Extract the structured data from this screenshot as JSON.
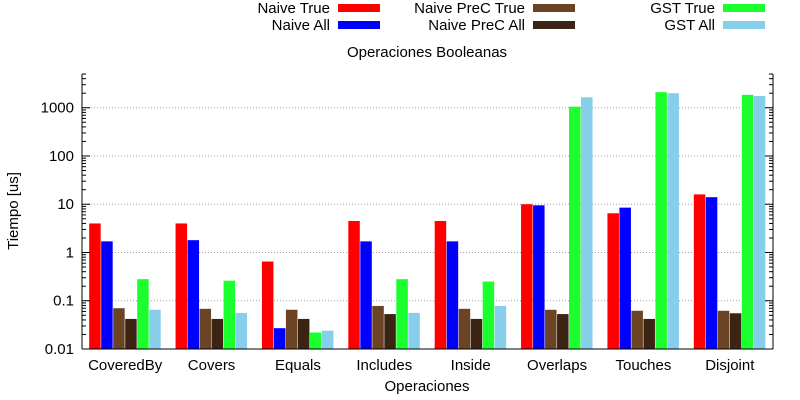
{
  "chart_data": {
    "type": "bar",
    "title": "Operaciones Booleanas",
    "xlabel": "Operaciones",
    "ylabel": "Tiempo [us]",
    "yscale": "log",
    "ylim": [
      0.01,
      5000
    ],
    "yticks": [
      {
        "value": 0.01,
        "label": "0.01"
      },
      {
        "value": 0.1,
        "label": "0.1"
      },
      {
        "value": 1,
        "label": "1"
      },
      {
        "value": 10,
        "label": "10"
      },
      {
        "value": 100,
        "label": "100"
      },
      {
        "value": 1000,
        "label": "1000"
      }
    ],
    "grid": true,
    "legend_position": "top",
    "categories": [
      "CoveredBy",
      "Covers",
      "Equals",
      "Includes",
      "Inside",
      "Overlaps",
      "Touches",
      "Disjoint"
    ],
    "series": [
      {
        "name": "Naive True",
        "color": "#ff0000",
        "values": [
          4.0,
          4.0,
          0.65,
          4.5,
          4.5,
          10.0,
          6.5,
          16.0
        ]
      },
      {
        "name": "Naive All",
        "color": "#0000ff",
        "values": [
          1.7,
          1.8,
          0.027,
          1.7,
          1.7,
          9.5,
          8.5,
          14.0
        ]
      },
      {
        "name": "Naive PreC True",
        "color": "#6b4425",
        "values": [
          0.07,
          0.068,
          0.065,
          0.078,
          0.068,
          0.065,
          0.062,
          0.062
        ]
      },
      {
        "name": "Naive PreC All",
        "color": "#3b2413",
        "values": [
          0.042,
          0.042,
          0.042,
          0.053,
          0.042,
          0.053,
          0.042,
          0.055
        ]
      },
      {
        "name": "GST True",
        "color": "#1cff2e",
        "values": [
          0.28,
          0.26,
          0.022,
          0.28,
          0.25,
          1050,
          2100,
          1850
        ]
      },
      {
        "name": "GST All",
        "color": "#87ceeb",
        "values": [
          0.065,
          0.056,
          0.024,
          0.056,
          0.078,
          1650,
          2000,
          1750
        ]
      }
    ]
  }
}
